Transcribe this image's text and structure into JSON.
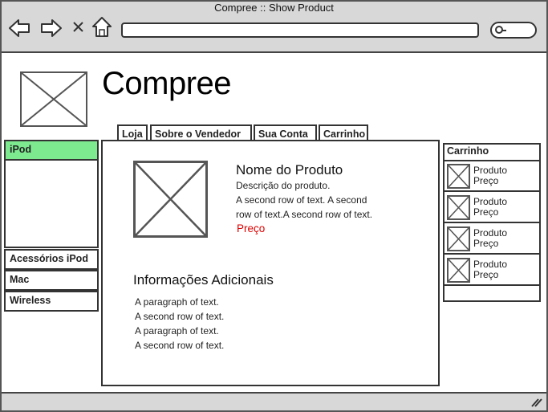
{
  "window": {
    "title": "Compree :: Show Product"
  },
  "browser": {
    "address_value": "",
    "search_value": "",
    "icons": [
      "back-arrow-icon",
      "forward-arrow-icon",
      "close-icon",
      "home-icon",
      "search-icon",
      "resize-grip-icon"
    ]
  },
  "site": {
    "brand": "Compree"
  },
  "tabs": [
    {
      "label": "Loja"
    },
    {
      "label": "Sobre o Vendedor"
    },
    {
      "label": "Sua Conta"
    },
    {
      "label": "Carrinho"
    }
  ],
  "sidebar": {
    "items": [
      {
        "label": "iPod",
        "active": true
      },
      {
        "label": "Acessórios iPod"
      },
      {
        "label": "Mac"
      },
      {
        "label": "Wireless"
      }
    ]
  },
  "product": {
    "name": "Nome do Produto",
    "description": "Descrição do produto.",
    "line1": "A second row of text. A second",
    "line2": "row of text.A second row of text.",
    "price": "Preço",
    "price_color": "#e00000"
  },
  "info": {
    "title": "Informações Adicionais",
    "lines": [
      "A paragraph of text.",
      "A second row of text.",
      "A paragraph of text.",
      "A second row of text."
    ]
  },
  "cart": {
    "title": "Carrinho",
    "items": [
      {
        "name": "Produto",
        "price": "Preço"
      },
      {
        "name": "Produto",
        "price": "Preço"
      },
      {
        "name": "Produto",
        "price": "Preço"
      },
      {
        "name": "Produto",
        "price": "Preço"
      }
    ]
  },
  "colors": {
    "active_sidebar": "#7dea90",
    "chrome": "#d8d8d8"
  }
}
